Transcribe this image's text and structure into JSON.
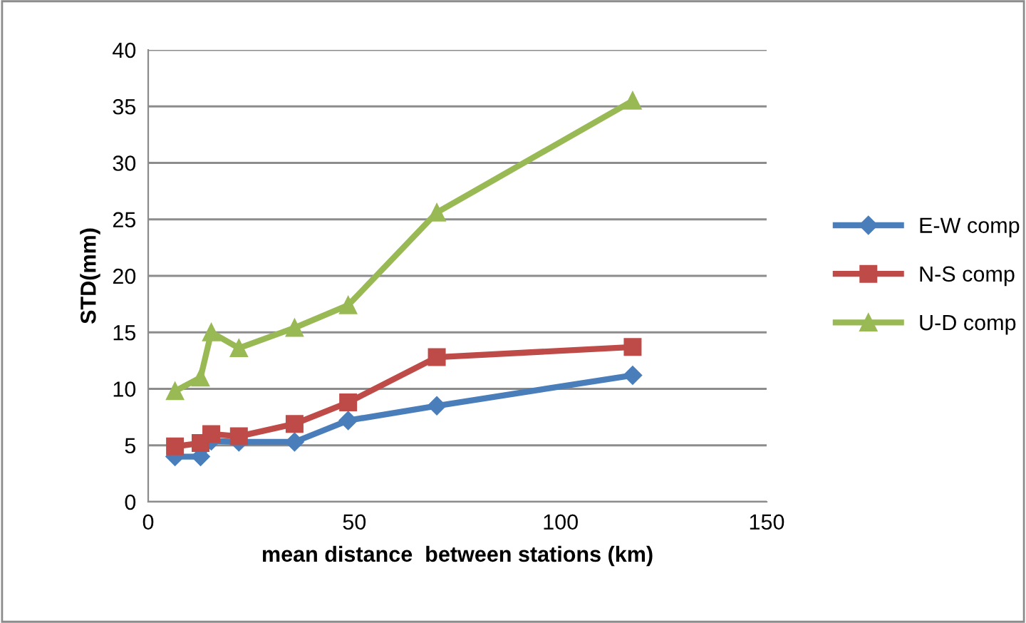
{
  "chart_data": {
    "type": "line",
    "xlabel": "mean distance  between stations (km)",
    "ylabel": "STD(mm)",
    "x": [
      6.5,
      12.7,
      15.3,
      22,
      35.5,
      48.5,
      70,
      117.5
    ],
    "series": [
      {
        "name": "E-W comp",
        "color": "#4a7ebb",
        "marker": "diamond",
        "values": [
          4.0,
          4.0,
          5.4,
          5.3,
          5.3,
          7.2,
          8.5,
          11.2
        ]
      },
      {
        "name": "N-S comp",
        "color": "#be4b48",
        "marker": "square",
        "values": [
          4.9,
          5.2,
          6.0,
          5.8,
          6.9,
          8.8,
          12.8,
          13.7
        ]
      },
      {
        "name": "U-D comp",
        "color": "#98b954",
        "marker": "triangle",
        "values": [
          9.8,
          11.0,
          15.0,
          13.6,
          15.4,
          17.4,
          25.6,
          35.5
        ]
      }
    ],
    "xlim": [
      0,
      150
    ],
    "xticks": [
      0,
      50,
      100,
      150
    ],
    "ylim": [
      0,
      40
    ],
    "yticks": [
      0,
      5,
      10,
      15,
      20,
      25,
      30,
      35,
      40
    ],
    "grid": "y",
    "legend": "right",
    "line_style": "solid"
  }
}
